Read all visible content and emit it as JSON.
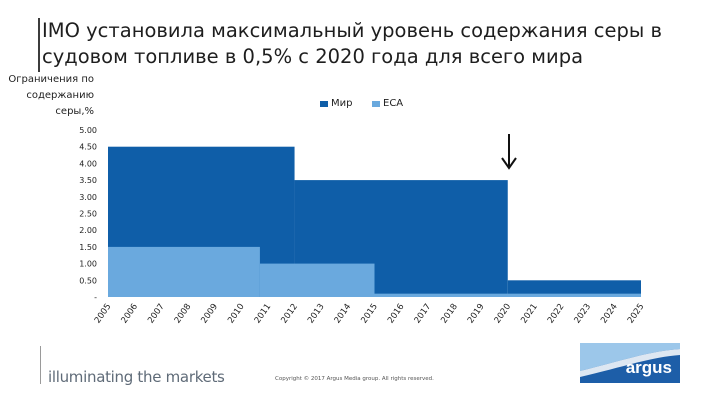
{
  "slide": {
    "title": "IMO установила максимальный уровень содержания серы в судовом топливе в 0,5% с 2020 года для всего мира",
    "tagline": "illuminating the markets",
    "copyright": "Copyright © 2017 Argus Media group. All rights reserved.",
    "logo_text": "argus"
  },
  "colors": {
    "world": "#0f5ea8",
    "eca": "#6aa9de",
    "logo_blue": "#1d5ea8",
    "logo_light": "#9cc7ea"
  },
  "chart_data": {
    "type": "area",
    "ylabel": "Ограничения по содержанию серы,%",
    "ylim": [
      0,
      5
    ],
    "yticks": [
      "5.00",
      "4.50",
      "4.00",
      "3.50",
      "3.00",
      "2.50",
      "2.00",
      "1.50",
      "1.00",
      "0.50",
      "-"
    ],
    "x": [
      "2005",
      "2006",
      "2007",
      "2008",
      "2009",
      "2010",
      "2011",
      "2012",
      "2013",
      "2014",
      "2015",
      "2016",
      "2017",
      "2018",
      "2019",
      "2020",
      "2021",
      "2022",
      "2023",
      "2024",
      "2025"
    ],
    "series": [
      {
        "name": "Мир",
        "color": "#0f5ea8",
        "steps": [
          {
            "from": "2005",
            "to": "2012",
            "value": 4.5
          },
          {
            "from": "2012",
            "to": "2020",
            "value": 3.5
          },
          {
            "from": "2020",
            "to": "2025",
            "value": 0.5
          }
        ]
      },
      {
        "name": "ECA",
        "color": "#6aa9de",
        "steps": [
          {
            "from": "2005",
            "to": "2010.7",
            "value": 1.5
          },
          {
            "from": "2010.7",
            "to": "2015",
            "value": 1.0
          },
          {
            "from": "2015",
            "to": "2025",
            "value": 0.1
          }
        ]
      }
    ],
    "legend_position": "top",
    "annotation": "arrow pointing down at 2020"
  }
}
